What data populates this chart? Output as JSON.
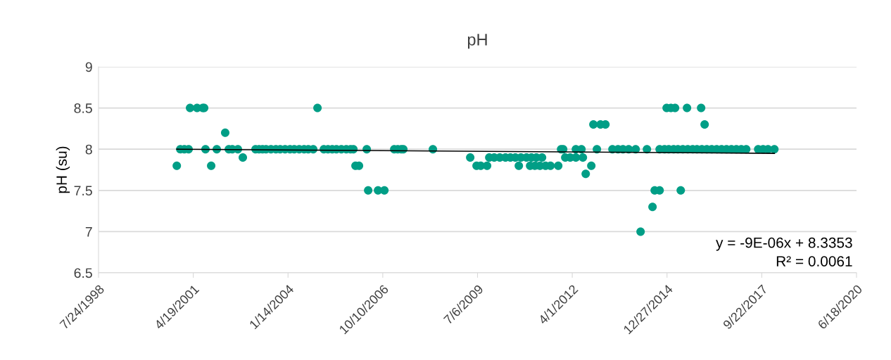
{
  "chart_data": {
    "type": "scatter",
    "title": "pH",
    "ylabel": "pH (su)",
    "xlim": [
      "1998-07-24",
      "2020-06-18"
    ],
    "xticks": [
      {
        "value": "1998-07-24",
        "label": "7/24/1998"
      },
      {
        "value": "2001-04-19",
        "label": "4/19/2001"
      },
      {
        "value": "2004-01-14",
        "label": "1/14/2004"
      },
      {
        "value": "2006-10-10",
        "label": "10/10/2006"
      },
      {
        "value": "2009-07-06",
        "label": "7/6/2009"
      },
      {
        "value": "2012-04-01",
        "label": "4/1/2012"
      },
      {
        "value": "2014-12-27",
        "label": "12/27/2014"
      },
      {
        "value": "2017-09-22",
        "label": "9/22/2017"
      },
      {
        "value": "2020-06-18",
        "label": "6/18/2020"
      }
    ],
    "ylim": [
      6.5,
      9
    ],
    "yticks": [
      6.5,
      7,
      7.5,
      8,
      8.5,
      9
    ],
    "grid": "y",
    "marker": "circle",
    "series": [
      {
        "color": "#009e86",
        "x": [
          "2000-10-27",
          "2000-12-03",
          "2001-01-15",
          "2001-03-01",
          "2001-03-16",
          "2001-05-29",
          "2001-07-28",
          "2001-08-12",
          "2001-08-26",
          "2001-10-25",
          "2001-12-23",
          "2002-03-22",
          "2002-04-29",
          "2002-06-05",
          "2002-08-03",
          "2002-09-24",
          "2003-02-05",
          "2003-03-14",
          "2003-04-20",
          "2003-05-27",
          "2003-07-18",
          "2003-09-08",
          "2003-10-23",
          "2003-12-14",
          "2004-02-04",
          "2004-03-20",
          "2004-05-11",
          "2004-07-02",
          "2004-08-15",
          "2004-10-06",
          "2004-11-20",
          "2005-01-26",
          "2005-03-11",
          "2005-04-25",
          "2005-06-08",
          "2005-07-30",
          "2005-09-20",
          "2005-11-04",
          "2005-12-04",
          "2005-12-26",
          "2006-02-01",
          "2006-04-24",
          "2006-05-09",
          "2006-08-21",
          "2006-10-27",
          "2007-02-08",
          "2007-03-17",
          "2007-04-23",
          "2007-05-15",
          "2008-03-22",
          "2009-04-20",
          "2009-06-26",
          "2009-08-09",
          "2009-10-15",
          "2009-11-07",
          "2009-12-29",
          "2010-02-26",
          "2010-04-27",
          "2010-06-18",
          "2010-08-09",
          "2010-10-07",
          "2010-12-05",
          "2011-01-26",
          "2011-03-19",
          "2011-05-18",
          "2010-09-15",
          "2011-01-12",
          "2011-03-05",
          "2011-04-26",
          "2011-06-24",
          "2011-08-15",
          "2011-11-05",
          "2011-12-05",
          "2011-12-27",
          "2012-01-18",
          "2012-03-10",
          "2012-05-09",
          "2012-05-09",
          "2012-07-07",
          "2012-07-22",
          "2012-10-19",
          "2012-08-21",
          "2012-11-10",
          "2012-12-17",
          "2013-01-24",
          "2013-03-17",
          "2013-05-30",
          "2013-07-28",
          "2013-09-18",
          "2013-11-17",
          "2014-01-30",
          "2014-05-29",
          "2014-03-23",
          "2014-07-27",
          "2014-08-19",
          "2014-10-10",
          "2015-05-21",
          "2014-12-23",
          "2015-02-06",
          "2015-03-22",
          "2015-07-26",
          "2015-12-22",
          "2016-01-28",
          "2014-10-10",
          "2014-12-01",
          "2015-01-14",
          "2015-03-07",
          "2015-04-21",
          "2015-06-12",
          "2015-08-03",
          "2015-09-24",
          "2015-11-08",
          "2015-12-30",
          "2016-02-20",
          "2016-04-12",
          "2016-06-03",
          "2016-07-25",
          "2016-09-15",
          "2016-11-06",
          "2016-12-28",
          "2017-02-18",
          "2017-04-11",
          "2017-08-15",
          "2017-10-06",
          "2017-11-27",
          "2018-02-02"
        ],
        "values": [
          7.8,
          8.0,
          8.0,
          8.0,
          8.5,
          8.5,
          8.5,
          8.5,
          8.0,
          7.8,
          8.0,
          8.2,
          8.0,
          8.0,
          8.0,
          7.9,
          8.0,
          8.0,
          8.0,
          8.0,
          8.0,
          8.0,
          8.0,
          8.0,
          8.0,
          8.0,
          8.0,
          8.0,
          8.0,
          8.0,
          8.5,
          8.0,
          8.0,
          8.0,
          8.0,
          8.0,
          8.0,
          8.0,
          8.0,
          7.8,
          7.8,
          8.0,
          7.5,
          7.5,
          7.5,
          8.0,
          8.0,
          8.0,
          8.0,
          8.0,
          7.9,
          7.8,
          7.8,
          7.8,
          7.9,
          7.9,
          7.9,
          7.9,
          7.9,
          7.9,
          7.9,
          7.9,
          7.9,
          7.9,
          7.9,
          7.8,
          7.8,
          7.8,
          7.8,
          7.8,
          7.8,
          7.8,
          8.0,
          8.0,
          7.9,
          7.9,
          7.9,
          8.0,
          8.0,
          7.9,
          7.8,
          7.7,
          8.3,
          8.0,
          8.3,
          8.3,
          8.0,
          8.0,
          8.0,
          8.0,
          8.0,
          8.0,
          7.0,
          7.3,
          7.5,
          7.5,
          7.5,
          8.5,
          8.5,
          8.5,
          8.5,
          8.5,
          8.3,
          8.0,
          8.0,
          8.0,
          8.0,
          8.0,
          8.0,
          8.0,
          8.0,
          8.0,
          8.0,
          8.0,
          8.0,
          8.0,
          8.0,
          8.0,
          8.0,
          8.0,
          8.0,
          8.0,
          8.0,
          8.0,
          8.0,
          8.0
        ]
      },
      {
        "type": "line",
        "color": "#000000",
        "line_style": "solid",
        "marker": "none",
        "x": [
          "2000-10-27",
          "2018-02-02"
        ],
        "values": [
          8.0,
          7.95
        ]
      }
    ],
    "annotations": [
      "y = -9E-06x + 8.3353",
      "R² = 0.0061"
    ]
  }
}
